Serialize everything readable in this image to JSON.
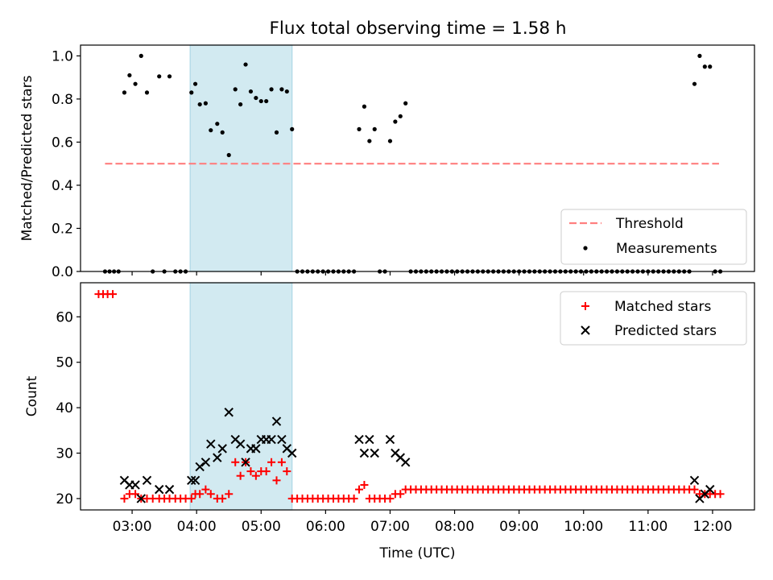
{
  "figure_title": "Flux total observing time = 1.58 h",
  "chart_data": [
    {
      "type": "scatter",
      "ylabel": "Matched/Predicted stars",
      "xlabel": "",
      "xlim": [
        2.2,
        12.65
      ],
      "ylim": [
        0,
        1.05
      ],
      "yticks": [
        0.0,
        0.2,
        0.4,
        0.6,
        0.8,
        1.0
      ],
      "ytick_labels": [
        "0.0",
        "0.2",
        "0.4",
        "0.6",
        "0.8",
        "1.0"
      ],
      "highlight_span": {
        "x": [
          3.9,
          5.48
        ],
        "color": "#add8e6"
      },
      "threshold": {
        "name": "Threshold",
        "value": 0.5,
        "x": [
          2.58,
          12.1
        ],
        "color": "#ff7f7f"
      },
      "legend": {
        "position": "lower-right",
        "entries": [
          "Threshold",
          "Measurements"
        ]
      },
      "series": [
        {
          "name": "Measurements",
          "color": "#000000",
          "x": [
            2.58,
            2.65,
            2.72,
            2.79,
            2.88,
            2.96,
            3.05,
            3.14,
            3.23,
            3.32,
            3.42,
            3.5,
            3.58,
            3.67,
            3.75,
            3.83,
            3.92,
            3.98,
            4.05,
            4.14,
            4.22,
            4.32,
            4.4,
            4.5,
            4.6,
            4.68,
            4.76,
            4.84,
            4.92,
            5.0,
            5.08,
            5.16,
            5.24,
            5.32,
            5.4,
            5.48,
            5.56,
            5.64,
            5.72,
            5.8,
            5.88,
            5.96,
            6.04,
            6.12,
            6.2,
            6.28,
            6.36,
            6.44,
            6.52,
            6.6,
            6.68,
            6.76,
            6.84,
            6.92,
            7.0,
            7.08,
            7.16,
            7.24,
            7.32,
            7.4,
            7.48,
            7.56,
            7.64,
            7.72,
            7.8,
            7.88,
            7.96,
            8.04,
            8.12,
            8.2,
            8.28,
            8.36,
            8.44,
            8.52,
            8.6,
            8.68,
            8.76,
            8.84,
            8.92,
            9.0,
            9.08,
            9.16,
            9.24,
            9.32,
            9.4,
            9.48,
            9.56,
            9.64,
            9.72,
            9.8,
            9.88,
            9.96,
            10.04,
            10.12,
            10.2,
            10.28,
            10.36,
            10.44,
            10.52,
            10.6,
            10.68,
            10.76,
            10.84,
            10.92,
            11.0,
            11.08,
            11.16,
            11.24,
            11.32,
            11.4,
            11.48,
            11.56,
            11.64,
            11.72,
            11.8,
            11.88,
            11.96,
            12.04,
            12.12
          ],
          "y": [
            0,
            0,
            0,
            0,
            0.83,
            0.91,
            0.87,
            1.0,
            0.83,
            0,
            0.905,
            0,
            0.905,
            0,
            0,
            0,
            0.83,
            0.87,
            0.775,
            0.78,
            0.655,
            0.685,
            0.645,
            0.54,
            0.845,
            0.775,
            0.96,
            0.835,
            0.805,
            0.79,
            0.79,
            0.845,
            0.645,
            0.845,
            0.835,
            0.66,
            0,
            0,
            0,
            0,
            0,
            0,
            0,
            0,
            0,
            0,
            0,
            0,
            0.66,
            0.765,
            0.605,
            0.66,
            0,
            0,
            0.605,
            0.695,
            0.72,
            0.78,
            0,
            0,
            0,
            0,
            0,
            0,
            0,
            0,
            0,
            0,
            0,
            0,
            0,
            0,
            0,
            0,
            0,
            0,
            0,
            0,
            0,
            0,
            0,
            0,
            0,
            0,
            0,
            0,
            0,
            0,
            0,
            0,
            0,
            0,
            0,
            0,
            0,
            0,
            0,
            0,
            0,
            0,
            0,
            0,
            0,
            0,
            0,
            0,
            0,
            0,
            0,
            0,
            0,
            0,
            0,
            0.87,
            1.0,
            0.95,
            0.95,
            0,
            0
          ]
        }
      ]
    },
    {
      "type": "scatter",
      "ylabel": "Count",
      "xlabel": "Time (UTC)",
      "xlim": [
        2.2,
        12.65
      ],
      "ylim": [
        17.5,
        67.5
      ],
      "yticks": [
        20,
        30,
        40,
        50,
        60
      ],
      "ytick_labels": [
        "20",
        "30",
        "40",
        "50",
        "60"
      ],
      "xticks": [
        3,
        4,
        5,
        6,
        7,
        8,
        9,
        10,
        11,
        12
      ],
      "xtick_labels": [
        "03:00",
        "04:00",
        "05:00",
        "06:00",
        "07:00",
        "08:00",
        "09:00",
        "10:00",
        "11:00",
        "12:00"
      ],
      "highlight_span": {
        "x": [
          3.9,
          5.48
        ],
        "color": "#add8e6"
      },
      "legend": {
        "position": "upper-right",
        "entries": [
          "Matched stars",
          "Predicted stars"
        ]
      },
      "series": [
        {
          "name": "Matched stars",
          "marker": "plus",
          "color": "#ff0000",
          "x": [
            2.48,
            2.55,
            2.62,
            2.7,
            2.88,
            2.96,
            3.05,
            3.14,
            3.23,
            3.32,
            3.42,
            3.5,
            3.58,
            3.67,
            3.75,
            3.83,
            3.92,
            3.98,
            4.05,
            4.14,
            4.22,
            4.32,
            4.4,
            4.5,
            4.6,
            4.68,
            4.76,
            4.84,
            4.92,
            5.0,
            5.08,
            5.16,
            5.24,
            5.32,
            5.4,
            5.48,
            5.56,
            5.64,
            5.72,
            5.8,
            5.88,
            5.96,
            6.04,
            6.12,
            6.2,
            6.28,
            6.36,
            6.44,
            6.52,
            6.6,
            6.68,
            6.76,
            6.84,
            6.92,
            7.0,
            7.08,
            7.16,
            7.24,
            7.32,
            7.4,
            7.48,
            7.56,
            7.64,
            7.72,
            7.8,
            7.88,
            7.96,
            8.04,
            8.12,
            8.2,
            8.28,
            8.36,
            8.44,
            8.52,
            8.6,
            8.68,
            8.76,
            8.84,
            8.92,
            9.0,
            9.08,
            9.16,
            9.24,
            9.32,
            9.4,
            9.48,
            9.56,
            9.64,
            9.72,
            9.8,
            9.88,
            9.96,
            10.04,
            10.12,
            10.2,
            10.28,
            10.36,
            10.44,
            10.52,
            10.6,
            10.68,
            10.76,
            10.84,
            10.92,
            11.0,
            11.08,
            11.16,
            11.24,
            11.32,
            11.4,
            11.48,
            11.56,
            11.64,
            11.72,
            11.8,
            11.88,
            11.96,
            12.04,
            12.12
          ],
          "y": [
            65,
            65,
            65,
            65,
            20,
            21,
            21,
            20,
            20,
            20,
            20,
            20,
            20,
            20,
            20,
            20,
            20,
            21,
            21,
            22,
            21,
            20,
            20,
            21,
            28,
            25,
            28,
            26,
            25,
            26,
            26,
            28,
            24,
            28,
            26,
            20,
            20,
            20,
            20,
            20,
            20,
            20,
            20,
            20,
            20,
            20,
            20,
            20,
            22,
            23,
            20,
            20,
            20,
            20,
            20,
            21,
            21,
            22,
            22,
            22,
            22,
            22,
            22,
            22,
            22,
            22,
            22,
            22,
            22,
            22,
            22,
            22,
            22,
            22,
            22,
            22,
            22,
            22,
            22,
            22,
            22,
            22,
            22,
            22,
            22,
            22,
            22,
            22,
            22,
            22,
            22,
            22,
            22,
            22,
            22,
            22,
            22,
            22,
            22,
            22,
            22,
            22,
            22,
            22,
            22,
            22,
            22,
            22,
            22,
            22,
            22,
            22,
            22,
            22,
            21,
            21,
            21,
            21,
            21
          ]
        },
        {
          "name": "Predicted stars",
          "marker": "x",
          "color": "#000000",
          "x": [
            2.88,
            2.96,
            3.05,
            3.14,
            3.23,
            3.42,
            3.58,
            3.92,
            3.98,
            4.05,
            4.14,
            4.22,
            4.32,
            4.4,
            4.5,
            4.6,
            4.68,
            4.76,
            4.84,
            4.92,
            5.0,
            5.08,
            5.16,
            5.24,
            5.32,
            5.4,
            5.48,
            6.52,
            6.6,
            6.68,
            6.76,
            7.0,
            7.08,
            7.16,
            7.24,
            11.72,
            11.8,
            11.88,
            11.96
          ],
          "y": [
            24,
            23,
            23,
            20,
            24,
            22,
            22,
            24,
            24,
            27,
            28,
            32,
            29,
            31,
            39,
            33,
            32,
            28,
            31,
            31,
            33,
            33,
            33,
            37,
            33,
            31,
            30,
            33,
            30,
            33,
            30,
            33,
            30,
            29,
            28,
            24,
            20,
            21,
            22
          ]
        }
      ]
    }
  ]
}
